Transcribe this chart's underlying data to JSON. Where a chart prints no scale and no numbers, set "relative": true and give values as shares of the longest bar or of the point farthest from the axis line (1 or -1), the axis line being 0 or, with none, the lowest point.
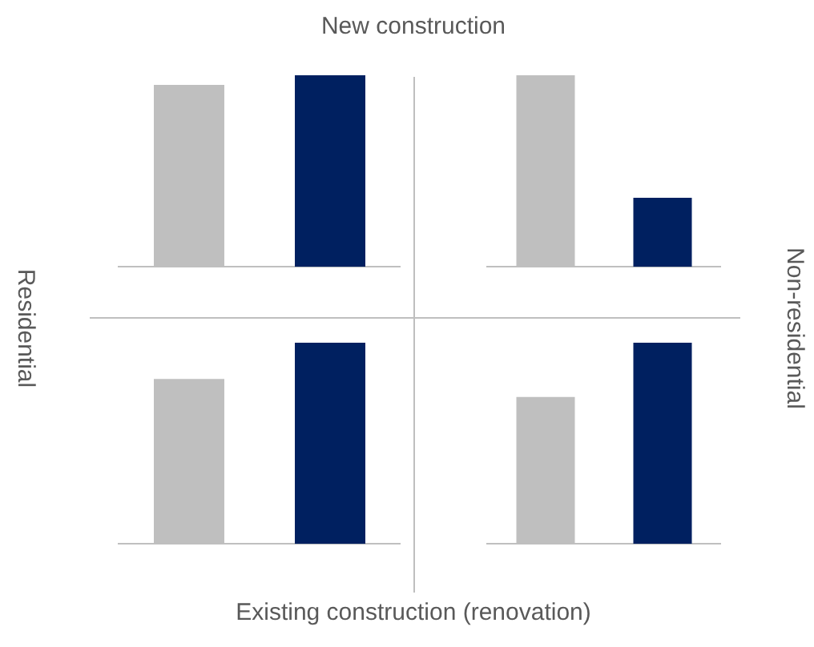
{
  "chart_data": [
    {
      "type": "bar",
      "categories": [
        null,
        null
      ],
      "values": [
        0.95,
        1
      ],
      "colors": [
        "#bfbfbf",
        "#002060"
      ],
      "relative": true,
      "grid": false,
      "legend": false,
      "annotations": [
        "New construction",
        "Residential",
        "Non-residential",
        "Existing construction (renovation)"
      ]
    },
    {
      "type": "bar",
      "categories": [
        null,
        null
      ],
      "values": [
        1,
        0.36
      ],
      "colors": [
        "#bfbfbf",
        "#002060"
      ],
      "relative": true,
      "grid": false,
      "legend": false
    },
    {
      "type": "bar",
      "categories": [
        null,
        null
      ],
      "values": [
        0.82,
        1
      ],
      "colors": [
        "#bfbfbf",
        "#002060"
      ],
      "relative": true,
      "grid": false,
      "legend": false
    },
    {
      "type": "bar",
      "categories": [
        null,
        null
      ],
      "values": [
        0.73,
        1
      ],
      "colors": [
        "#bfbfbf",
        "#002060"
      ],
      "relative": true,
      "grid": false,
      "legend": false
    }
  ]
}
